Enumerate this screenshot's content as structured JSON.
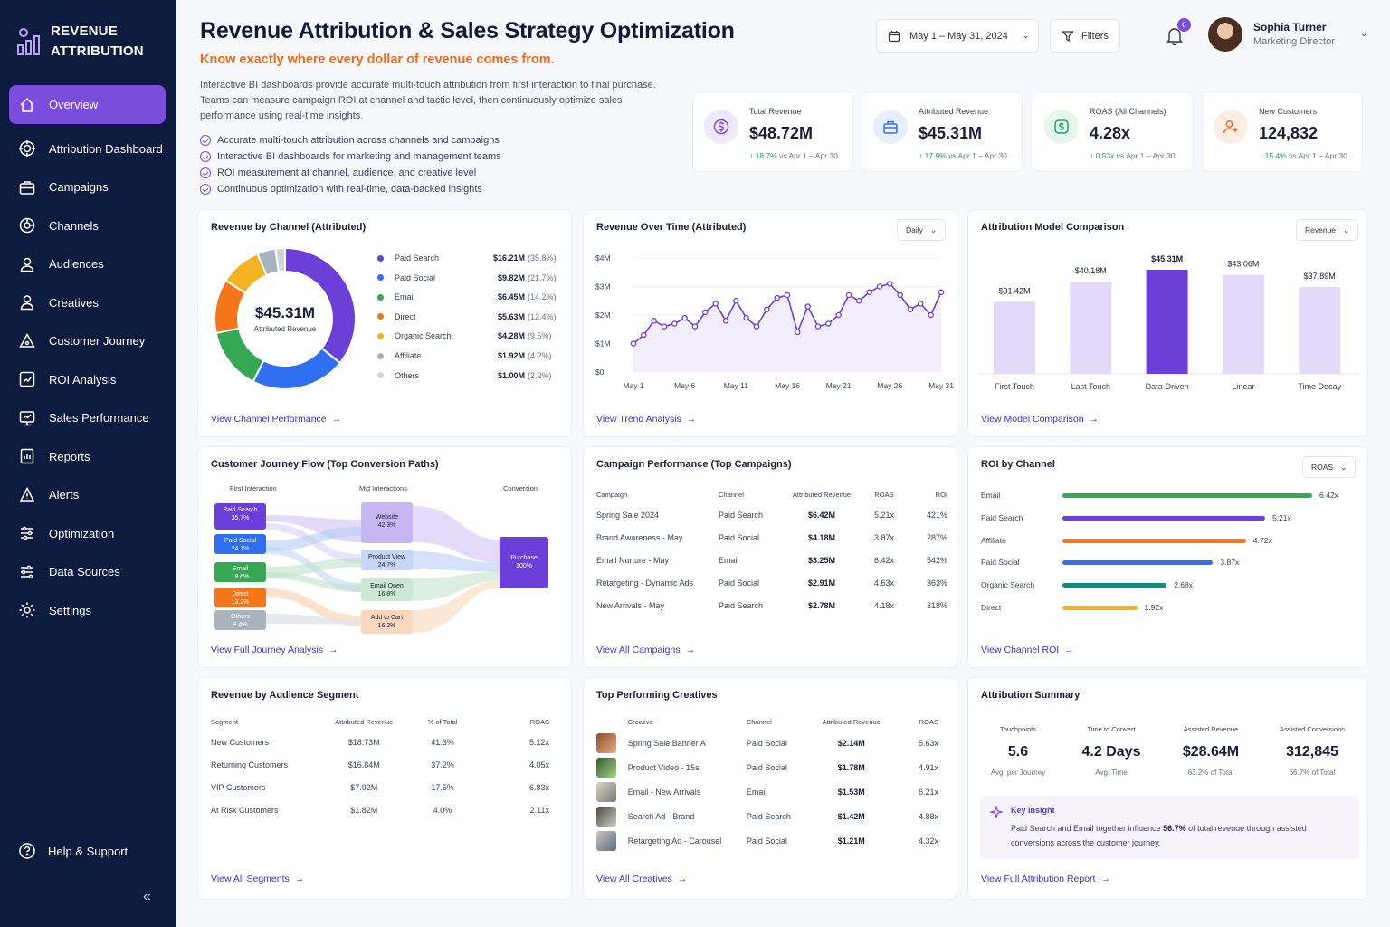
{
  "app": {
    "brand_line1": "REVENUE",
    "brand_line2": "ATTRIBUTION"
  },
  "sidebar": {
    "items": [
      {
        "label": "Overview",
        "icon": "home-icon",
        "active": true
      },
      {
        "label": "Attribution Dashboard",
        "icon": "target-icon"
      },
      {
        "label": "Campaigns",
        "icon": "briefcase-icon"
      },
      {
        "label": "Channels",
        "icon": "channels-icon"
      },
      {
        "label": "Audiences",
        "icon": "users-icon"
      },
      {
        "label": "Creatives",
        "icon": "person-icon"
      },
      {
        "label": "Customer Journey",
        "icon": "journey-icon"
      },
      {
        "label": "ROI Analysis",
        "icon": "roi-icon"
      },
      {
        "label": "Sales Performance",
        "icon": "sales-icon"
      },
      {
        "label": "Reports",
        "icon": "reports-icon"
      },
      {
        "label": "Alerts",
        "icon": "bell-icon"
      },
      {
        "label": "Optimization",
        "icon": "sliders-icon"
      },
      {
        "label": "Data Sources",
        "icon": "database-icon"
      },
      {
        "label": "Settings",
        "icon": "gear-icon"
      }
    ],
    "help": "Help & Support"
  },
  "header": {
    "title": "Revenue Attribution & Sales Strategy Optimization",
    "subtitle": "Know exactly where every dollar of revenue comes from.",
    "description": "Interactive BI dashboards provide accurate multi-touch attribution from first interaction to final purchase. Teams can measure campaign ROI at channel and tactic level, then continuously optimize sales performance using real-time insights.",
    "bullets": [
      "Accurate multi-touch attribution across channels and campaigns",
      "Interactive BI dashboards for marketing and management teams",
      "ROI measurement at channel, audience, and creative level",
      "Continuous optimization with real-time, data-backed insights"
    ],
    "date_range": "May 1 – May 31, 2024",
    "filters": "Filters",
    "notifications": "6",
    "user_name": "Sophia Turner",
    "user_role": "Marketing Director"
  },
  "kpis": [
    {
      "label": "Total Revenue",
      "value": "$48.72M",
      "delta": "18.7%",
      "compare": "vs Apr 1 – Apr 30",
      "color": "#7c4ddd",
      "bg": "#efe9fb",
      "icon": "dollar-icon"
    },
    {
      "label": "Attributed Revenue",
      "value": "$45.31M",
      "delta": "17.9%",
      "compare": "vs Apr 1 – Apr 30",
      "color": "#3b6fe0",
      "bg": "#e8effc",
      "icon": "briefcase-icon"
    },
    {
      "label": "ROAS (All Channels)",
      "value": "4.28x",
      "delta": "0.53x",
      "compare": "vs Apr 1 – Apr 30",
      "color": "#22a05a",
      "bg": "#e6f6ed",
      "icon": "money-icon"
    },
    {
      "label": "New Customers",
      "value": "124,832",
      "delta": "15.4%",
      "compare": "vs Apr 1 – Apr 30",
      "color": "#f06a1e",
      "bg": "#fdeee4",
      "icon": "add-user-icon"
    }
  ],
  "channel_panel": {
    "title": "Revenue by Channel (Attributed)",
    "center_value": "$45.31M",
    "center_label": "Attributed Revenue",
    "link": "View Channel Performance",
    "items": [
      {
        "name": "Paid Search",
        "value": "$16.21M",
        "pct": "(35.8%)",
        "share": 35.8,
        "color": "#6c3fd9"
      },
      {
        "name": "Paid Social",
        "value": "$9.82M",
        "pct": "(21.7%)",
        "share": 21.7,
        "color": "#2f6ff0"
      },
      {
        "name": "Email",
        "value": "$6.45M",
        "pct": "(14.2%)",
        "share": 14.2,
        "color": "#34a853"
      },
      {
        "name": "Direct",
        "value": "$5.63M",
        "pct": "(12.4%)",
        "share": 12.4,
        "color": "#f5761a"
      },
      {
        "name": "Organic Search",
        "value": "$4.28M",
        "pct": "(9.5%)",
        "share": 9.5,
        "color": "#f5b324"
      },
      {
        "name": "Affiliate",
        "value": "$1.92M",
        "pct": "(4.2%)",
        "share": 4.2,
        "color": "#a8b4bd"
      },
      {
        "name": "Others",
        "value": "$1.00M",
        "pct": "(2.2%)",
        "share": 2.2,
        "color": "#cdd5da"
      }
    ]
  },
  "time_panel": {
    "title": "Revenue Over Time (Attributed)",
    "dropdown": "Daily",
    "link": "View Trend Analysis"
  },
  "model_panel": {
    "title": "Attribution Model Comparison",
    "dropdown": "Revenue",
    "link": "View Model Comparison"
  },
  "chart_data": [
    {
      "type": "pie",
      "title": "Revenue by Channel (Attributed)",
      "categories": [
        "Paid Search",
        "Paid Social",
        "Email",
        "Direct",
        "Organic Search",
        "Affiliate",
        "Others"
      ],
      "values": [
        16.21,
        9.82,
        6.45,
        5.63,
        4.28,
        1.92,
        1.0
      ]
    },
    {
      "type": "line",
      "title": "Revenue Over Time (Attributed)",
      "xlabels": [
        "May 1",
        "May 6",
        "May 11",
        "May 16",
        "May 21",
        "May 26",
        "May 31"
      ],
      "yticks": [
        "$4M",
        "$3M",
        "$2M",
        "$1M",
        "$0"
      ],
      "ylim": [
        0,
        4
      ],
      "x": [
        1,
        2,
        3,
        4,
        5,
        6,
        7,
        8,
        9,
        10,
        11,
        12,
        13,
        14,
        15,
        16,
        17,
        18,
        19,
        20,
        21,
        22,
        23,
        24,
        25,
        26,
        27,
        28,
        29,
        30,
        31
      ],
      "values": [
        1.0,
        1.3,
        1.8,
        1.6,
        1.7,
        1.9,
        1.6,
        2.1,
        2.4,
        1.8,
        2.5,
        1.9,
        1.6,
        2.2,
        2.6,
        2.7,
        1.4,
        2.3,
        1.6,
        1.7,
        2.0,
        2.7,
        2.5,
        2.8,
        3.0,
        3.1,
        2.7,
        2.2,
        2.4,
        2.0,
        2.8
      ],
      "grid": true
    },
    {
      "type": "bar",
      "title": "Attribution Model Comparison",
      "categories": [
        "First Touch",
        "Last Touch",
        "Data-Driven",
        "Linear",
        "Time Decay"
      ],
      "values": [
        31.42,
        40.18,
        45.31,
        43.06,
        37.89
      ],
      "labels": [
        "$31.42M",
        "$40.18M",
        "$45.31M",
        "$43.06M",
        "$37.89M"
      ],
      "highlight": "Data-Driven"
    },
    {
      "type": "bar",
      "title": "ROI by Channel",
      "orientation": "horizontal",
      "categories": [
        "Email",
        "Paid Search",
        "Affiliate",
        "Paid Social",
        "Organic Search",
        "Direct"
      ],
      "values": [
        6.42,
        5.21,
        4.72,
        3.87,
        2.68,
        1.92
      ],
      "labels": [
        "6.42x",
        "5.21x",
        "4.72x",
        "3.87x",
        "2.68x",
        "1.92x"
      ]
    }
  ],
  "journey_panel": {
    "title": "Customer Journey Flow (Top Conversion Paths)",
    "col1": "First Interaction",
    "col2": "Mid Interactions",
    "col3": "Conversion",
    "first": [
      {
        "name": "Paid Search",
        "pct": "35.7%"
      },
      {
        "name": "Paid Social",
        "pct": "24.1%"
      },
      {
        "name": "Email",
        "pct": "18.6%"
      },
      {
        "name": "Direct",
        "pct": "13.2%"
      },
      {
        "name": "Others",
        "pct": "8.4%"
      }
    ],
    "mid": [
      {
        "name": "Website",
        "pct": "42.3%"
      },
      {
        "name": "Product View",
        "pct": "24.7%"
      },
      {
        "name": "Email Open",
        "pct": "16.8%"
      },
      {
        "name": "Add to Cart",
        "pct": "16.2%"
      }
    ],
    "conversion": {
      "name": "Purchase",
      "pct": "100%"
    },
    "link": "View Full Journey Analysis"
  },
  "campaign_panel": {
    "title": "Campaign Performance (Top Campaigns)",
    "headers": [
      "Campaign",
      "Channel",
      "Attributed Revenue",
      "ROAS",
      "ROI"
    ],
    "rows": [
      [
        "Spring Sale 2024",
        "Paid Search",
        "$6.42M",
        "5.21x",
        "421%"
      ],
      [
        "Brand Awareness - May",
        "Paid Social",
        "$4.18M",
        "3.87x",
        "287%"
      ],
      [
        "Email Nurture - May",
        "Email",
        "$3.25M",
        "6.42x",
        "542%"
      ],
      [
        "Retargeting - Dynamic Ads",
        "Paid Social",
        "$2.91M",
        "4.63x",
        "363%"
      ],
      [
        "New Arrivals - May",
        "Paid Search",
        "$2.78M",
        "4.18x",
        "318%"
      ]
    ],
    "link": "View All Campaigns"
  },
  "roi_panel": {
    "title": "ROI by Channel",
    "dropdown": "ROAS",
    "colors": [
      "#34a853",
      "#6c3fd9",
      "#f5761a",
      "#2f6ff0",
      "#138a7e",
      "#f5b324"
    ],
    "link": "View Channel ROI"
  },
  "segment_panel": {
    "title": "Revenue by Audience Segment",
    "headers": [
      "Segment",
      "Attributed Revenue",
      "% of Total",
      "ROAS"
    ],
    "rows": [
      [
        "New Customers",
        "$18.73M",
        "41.3%",
        "5.12x"
      ],
      [
        "Returning Customers",
        "$16.84M",
        "37.2%",
        "4.05x"
      ],
      [
        "VIP Customers",
        "$7.92M",
        "17.5%",
        "6.83x"
      ],
      [
        "At Risk Customers",
        "$1.82M",
        "4.0%",
        "2.11x"
      ]
    ],
    "link": "View All Segments"
  },
  "creative_panel": {
    "title": "Top Performing Creatives",
    "headers": [
      "Creative",
      "Channel",
      "Attributed Revenue",
      "ROAS"
    ],
    "rows": [
      [
        "Spring Sale Banner A",
        "Paid Social",
        "$2.14M",
        "5.63x"
      ],
      [
        "Product Video - 15s",
        "Paid Social",
        "$1.78M",
        "4.91x"
      ],
      [
        "Email - New Arrivals",
        "Email",
        "$1.53M",
        "6.21x"
      ],
      [
        "Search Ad - Brand",
        "Paid Search",
        "$1.42M",
        "4.88x"
      ],
      [
        "Retargeting Ad - Carousel",
        "Paid Social",
        "$1.21M",
        "4.32x"
      ]
    ],
    "link": "View All Creatives"
  },
  "summary_panel": {
    "title": "Attribution Summary",
    "cols": [
      {
        "label": "Touchpoints",
        "value": "5.6",
        "sub": "Avg. per Journey"
      },
      {
        "label": "Time to Convert",
        "value": "4.2 Days",
        "sub": "Avg. Time"
      },
      {
        "label": "Assisted Revenue",
        "value": "$28.64M",
        "sub": "63.2% of Total"
      },
      {
        "label": "Assisted Conversions",
        "value": "312,845",
        "sub": "66.7% of Total"
      }
    ],
    "insight_title": "Key Insight",
    "insight_pre": "Paid Search and Email together influence ",
    "insight_bold": "56.7%",
    "insight_post": " of total revenue through assisted conversions across the customer journey.",
    "link": "View Full Attribution Report"
  }
}
